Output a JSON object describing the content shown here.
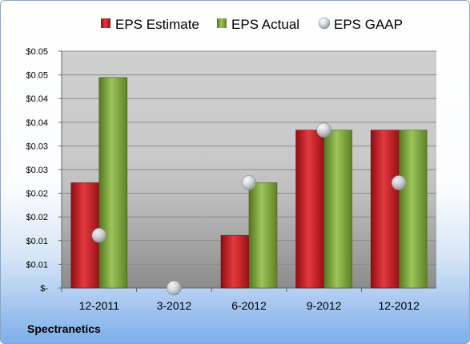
{
  "company": "Spectranetics",
  "colors": {
    "estimate": "#c8161e",
    "actual": "#79a13a",
    "gaap": "#c4ccd6"
  },
  "chart_data": {
    "type": "bar",
    "categories": [
      "12-2011",
      "3-2012",
      "6-2012",
      "9-2012",
      "12-2012"
    ],
    "series": [
      {
        "name": "EPS Estimate",
        "style": "bar",
        "values": [
          0.02,
          null,
          0.01,
          0.03,
          0.03
        ]
      },
      {
        "name": "EPS Actual",
        "style": "bar",
        "values": [
          0.04,
          null,
          0.02,
          0.03,
          0.03
        ]
      },
      {
        "name": "EPS GAAP",
        "style": "marker",
        "values": [
          0.01,
          0.0,
          0.02,
          0.03,
          0.02
        ]
      }
    ],
    "y_ticks": [
      "$-",
      "$0.01",
      "$0.01",
      "$0.02",
      "$0.02",
      "$0.03",
      "$0.03",
      "$0.04",
      "$0.04",
      "$0.05",
      "$0.05"
    ],
    "ylim": [
      0,
      0.045
    ],
    "legend_position": "top",
    "grid": true
  }
}
